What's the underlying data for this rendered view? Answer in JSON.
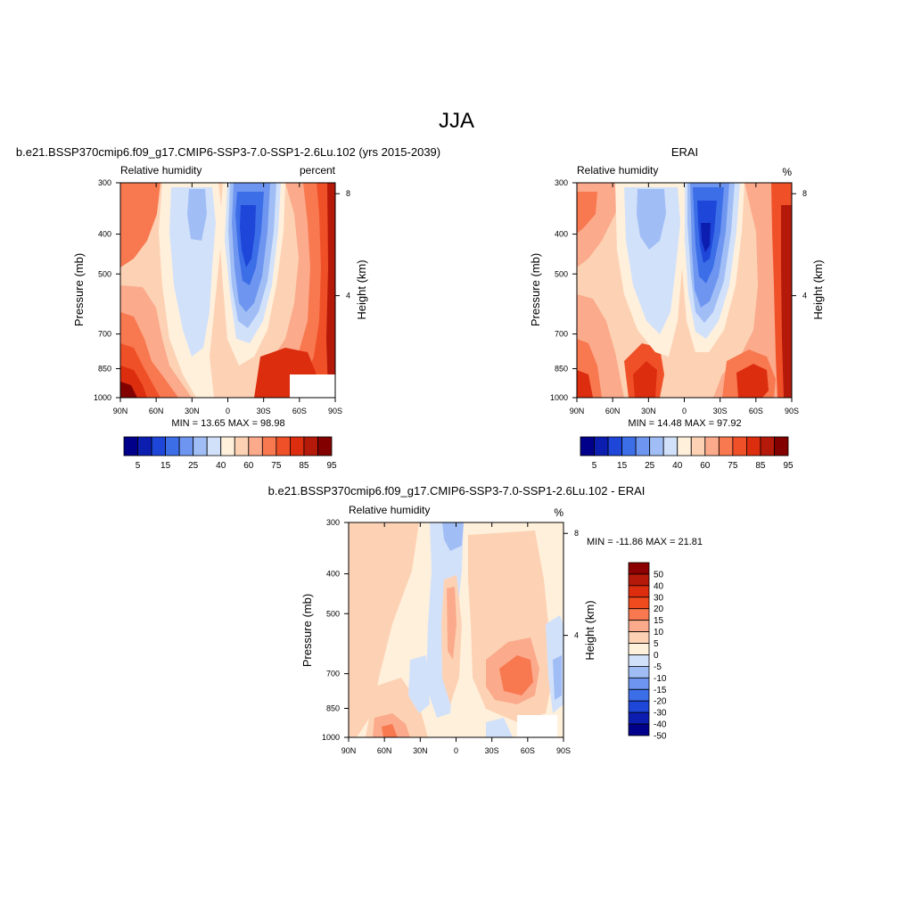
{
  "figure": {
    "title": "JJA"
  },
  "panels": {
    "model": {
      "title": "b.e21.BSSP370cmip6.f09_g17.CMIP6-SSP3-7.0-SSP1-2.6Lu.102 (yrs 2015-2039)",
      "variable": "Relative humidity",
      "units": "percent",
      "stats": "MIN =  13.65  MAX =  98.98",
      "ylabel": "Pressure (mb)",
      "ylabel_right": "Height (km)"
    },
    "obs": {
      "title": "ERAI",
      "variable": "Relative humidity",
      "units": "%",
      "stats": "MIN =  14.48  MAX =  97.92",
      "ylabel": "Pressure (mb)",
      "ylabel_right": "Height (km)"
    },
    "diff": {
      "title": "b.e21.BSSP370cmip6.f09_g17.CMIP6-SSP3-7.0-SSP1-2.6Lu.102 - ERAI",
      "variable": "Relative humidity",
      "units": "%",
      "stats": "MIN = -11.86  MAX =  21.81",
      "ylabel": "Pressure (mb)",
      "ylabel_right": "Height (km)"
    }
  },
  "chart_data": [
    {
      "type": "heatmap",
      "title": "b.e21.BSSP370cmip6.f09_g17.CMIP6-SSP3-7.0-SSP1-2.6Lu.102 (yrs 2015-2039)",
      "variable": "Relative humidity",
      "units": "percent",
      "xlabel": "",
      "ylabel": "Pressure (mb)",
      "ylabel_right": "Height (km)",
      "x_ticks": [
        "90N",
        "60N",
        "30N",
        "0",
        "30S",
        "60S",
        "90S"
      ],
      "y_ticks": [
        "300",
        "400",
        "500",
        "700",
        "850",
        "1000"
      ],
      "y_right_ticks": [
        "8",
        "4"
      ],
      "xlim": [
        90,
        -90
      ],
      "ylim": [
        1000,
        300
      ],
      "y_scale": "log",
      "min": 13.65,
      "max": 98.98,
      "colorbar_levels": [
        5,
        10,
        15,
        20,
        25,
        30,
        40,
        50,
        60,
        70,
        75,
        80,
        85,
        90,
        95
      ],
      "colorbar_labels": [
        "5",
        "15",
        "25",
        "40",
        "60",
        "75",
        "85",
        "95"
      ]
    },
    {
      "type": "heatmap",
      "title": "ERAI",
      "variable": "Relative humidity",
      "units": "%",
      "xlabel": "",
      "ylabel": "Pressure (mb)",
      "ylabel_right": "Height (km)",
      "x_ticks": [
        "90N",
        "60N",
        "30N",
        "0",
        "30S",
        "60S",
        "90S"
      ],
      "y_ticks": [
        "300",
        "400",
        "500",
        "700",
        "850",
        "1000"
      ],
      "y_right_ticks": [
        "8",
        "4"
      ],
      "xlim": [
        90,
        -90
      ],
      "ylim": [
        1000,
        300
      ],
      "y_scale": "log",
      "min": 14.48,
      "max": 97.92,
      "colorbar_levels": [
        5,
        10,
        15,
        20,
        25,
        30,
        40,
        50,
        60,
        70,
        75,
        80,
        85,
        90,
        95
      ],
      "colorbar_labels": [
        "5",
        "15",
        "25",
        "40",
        "60",
        "75",
        "85",
        "95"
      ]
    },
    {
      "type": "heatmap",
      "title": "b.e21.BSSP370cmip6.f09_g17.CMIP6-SSP3-7.0-SSP1-2.6Lu.102 - ERAI",
      "variable": "Relative humidity",
      "units": "%",
      "xlabel": "",
      "ylabel": "Pressure (mb)",
      "ylabel_right": "Height (km)",
      "x_ticks": [
        "90N",
        "60N",
        "30N",
        "0",
        "30S",
        "60S",
        "90S"
      ],
      "y_ticks": [
        "300",
        "400",
        "500",
        "700",
        "850",
        "1000"
      ],
      "y_right_ticks": [
        "8",
        "4"
      ],
      "xlim": [
        90,
        -90
      ],
      "ylim": [
        1000,
        300
      ],
      "y_scale": "log",
      "min": -11.86,
      "max": 21.81,
      "colorbar_levels": [
        50,
        40,
        30,
        20,
        15,
        10,
        5,
        0,
        -5,
        -10,
        -15,
        -20,
        -30,
        -40,
        -50
      ],
      "colorbar_labels": [
        "50",
        "40",
        "30",
        "20",
        "15",
        "10",
        "5",
        "0",
        "-5",
        "-10",
        "-15",
        "-20",
        "-30",
        "-40",
        "-50"
      ]
    }
  ],
  "colors": {
    "abs_colorbar": [
      "#00008b",
      "#0c1eb0",
      "#1e46d8",
      "#3c6ee8",
      "#6e96f0",
      "#a0bef5",
      "#d2e1fa",
      "#fff0dc",
      "#fdd2b4",
      "#fbaa8c",
      "#f87850",
      "#f05028",
      "#dc2d0f",
      "#b4190a",
      "#820000"
    ],
    "diff_colorbar": [
      "#8b0000",
      "#b4190a",
      "#dc2d0f",
      "#f04b1e",
      "#f87850",
      "#fbaa8c",
      "#fdd2b4",
      "#fff0dc",
      "#d2e1fa",
      "#a0bef5",
      "#6e96f0",
      "#3c6ee8",
      "#1e46d8",
      "#0c1eb0",
      "#00008b"
    ]
  }
}
